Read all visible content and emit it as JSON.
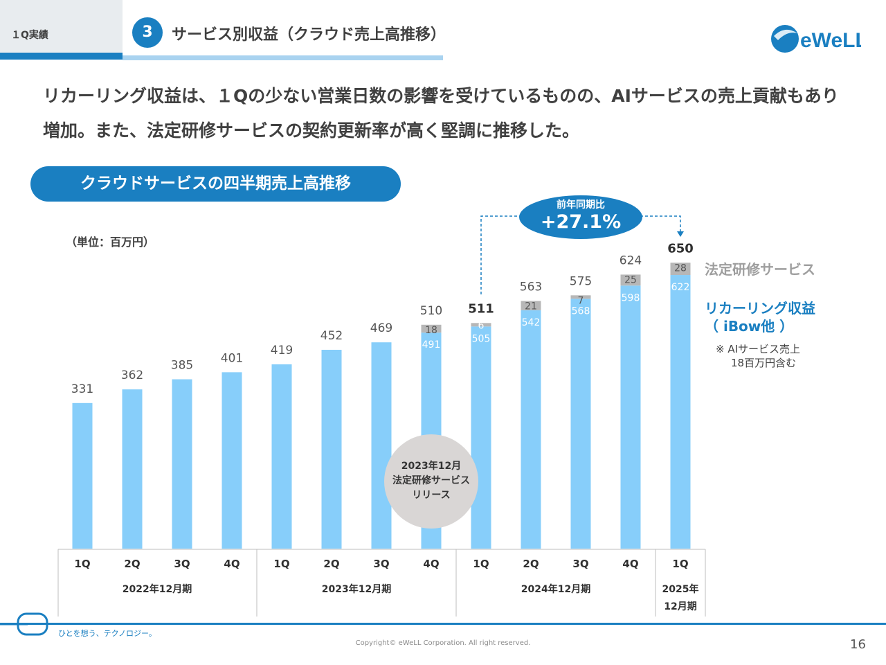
{
  "header": {
    "section_label": "１Q実績",
    "number_badge": "3",
    "title": "サービス別収益（クラウド売上高推移）",
    "logo_text": "eWeLL"
  },
  "headline": "リカーリング収益は、１Qの少ない営業日数の影響を受けているものの、AIサービスの売上貢献もあり増加。また、法定研修サービスの契約更新率が高く堅調に推移した。",
  "chart_title": "クラウドサービスの四半期売上高推移",
  "unit_label": "（単位：百万円）",
  "yoy": {
    "label": "前年同期比",
    "value": "+27.1%"
  },
  "release_note": {
    "line1": "2023年12月",
    "line2": "法定研修サービス",
    "line3": "リリース"
  },
  "legend": {
    "legal_training": "法定研修サービス",
    "recurring_line1": "リカーリング収益",
    "recurring_line2": "（ iBow他 ）",
    "note_line1": "※ AIサービス売上",
    "note_line2": "18百万円含む"
  },
  "colors": {
    "accent": "#1a7fc1",
    "recurring": "#87cefa",
    "legal_training": "#b7b7b7"
  },
  "chart_data": {
    "type": "bar",
    "stacked": true,
    "categories": [
      "1Q",
      "2Q",
      "3Q",
      "4Q",
      "1Q",
      "2Q",
      "3Q",
      "4Q",
      "1Q",
      "2Q",
      "3Q",
      "4Q",
      "1Q"
    ],
    "groups": [
      {
        "label": "2022年12月期",
        "start": 0,
        "end": 3
      },
      {
        "label": "2023年12月期",
        "start": 4,
        "end": 7
      },
      {
        "label": "2024年12月期",
        "start": 8,
        "end": 11
      },
      {
        "label": "2025年12月期",
        "start": 12,
        "end": 12
      }
    ],
    "series": [
      {
        "name": "リカーリング収益（ iBow他 ）",
        "values": [
          331,
          362,
          385,
          401,
          419,
          452,
          469,
          491,
          505,
          542,
          568,
          598,
          622
        ]
      },
      {
        "name": "法定研修サービス",
        "values": [
          0,
          0,
          0,
          0,
          0,
          0,
          0,
          18,
          6,
          21,
          7,
          25,
          28
        ]
      }
    ],
    "totals": [
      331,
      362,
      385,
      401,
      419,
      452,
      469,
      510,
      511,
      563,
      575,
      624,
      650
    ],
    "segment_labels_from_index": 7,
    "bold_totals": [
      8,
      12
    ],
    "ylim": [
      0,
      700
    ]
  },
  "footer": {
    "tagline": "ひとを想う、テクノロジー。",
    "copyright": "Copyright© eWeLL Corporation. All right reserved.",
    "page_number": "16"
  }
}
